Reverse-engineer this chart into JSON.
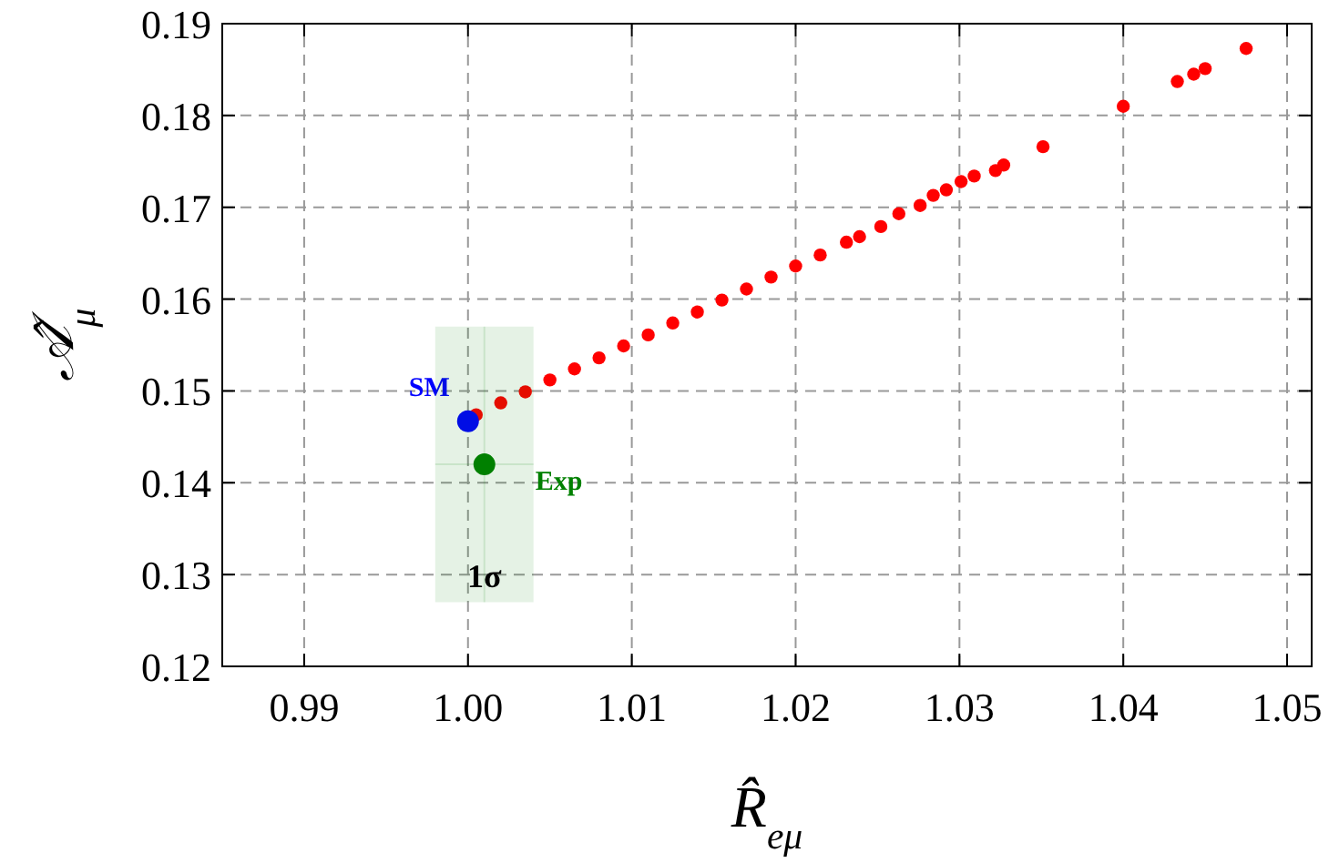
{
  "chart_data": {
    "type": "scatter",
    "xlabel": "R̂$_{eμ}$",
    "ylabel": "𝒜̂$_{μ}$",
    "xlim": [
      0.985,
      1.0515
    ],
    "xticks": [
      {
        "value": 0.99,
        "label": "0.99"
      },
      {
        "value": 1,
        "label": "1.00"
      },
      {
        "value": 1.01,
        "label": "1.01"
      },
      {
        "value": 1.02,
        "label": "1.02"
      },
      {
        "value": 1.03,
        "label": "1.03"
      },
      {
        "value": 1.04,
        "label": "1.04"
      },
      {
        "value": 1.05,
        "label": "1.05"
      }
    ],
    "ylim": [
      0.12,
      0.19
    ],
    "yticks": [
      0.12,
      0.13,
      0.14,
      0.15,
      0.16,
      0.17,
      0.18,
      0.19
    ],
    "grid": true,
    "marker": "circle",
    "series": [
      {
        "color": "#ff0000",
        "x": [
          1.0005,
          1.002,
          1.0035,
          1.005,
          1.0065,
          1.008,
          1.0095,
          1.011,
          1.0125,
          1.014,
          1.0155,
          1.017,
          1.0185,
          1.02,
          1.0215,
          1.0231,
          1.0239,
          1.0252,
          1.0263,
          1.0276,
          1.0284,
          1.0292,
          1.0301,
          1.0309,
          1.0322,
          1.0327,
          1.0351,
          1.04,
          1.0433,
          1.0443,
          1.045,
          1.0475
        ],
        "values": [
          0.1474,
          0.1487,
          0.1499,
          0.1512,
          0.1524,
          0.1536,
          0.1549,
          0.1561,
          0.1574,
          0.1586,
          0.1599,
          0.1611,
          0.1624,
          0.1636,
          0.1648,
          0.1662,
          0.1668,
          0.1679,
          0.1693,
          0.1702,
          0.1713,
          0.1719,
          0.1728,
          0.1734,
          0.174,
          0.1746,
          0.1766,
          0.181,
          0.1837,
          0.1845,
          0.1851,
          0.1873
        ]
      },
      {
        "name": "SM",
        "color": "#0000ff",
        "x": [
          1.0
        ],
        "values": [
          0.1467
        ]
      },
      {
        "name": "Exp",
        "color": "#008000",
        "x": [
          1.001
        ],
        "values": [
          0.142
        ],
        "errors": [
          0.015
        ],
        "xerrors": [
          0.003
        ]
      }
    ],
    "annotations": [
      "1σ"
    ]
  }
}
